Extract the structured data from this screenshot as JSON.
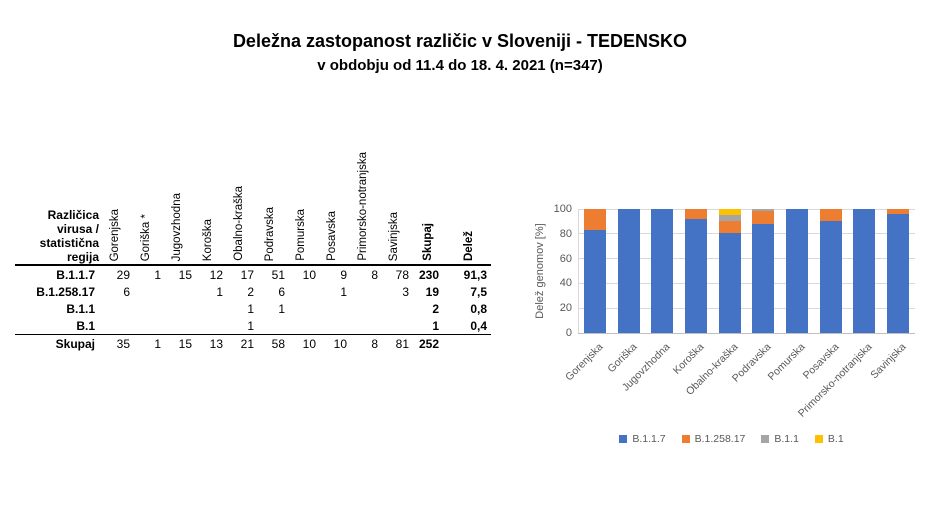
{
  "title": "Deležna zastopanost različic v Sloveniji - TEDENSKO",
  "subtitle": "v obdobju od 11.4 do 18. 4. 2021 (n=347)",
  "table": {
    "corner_header": "Različica\nvirusa /\nstatistična\nregija",
    "region_headers": [
      "Gorenjska",
      "Goriška *",
      "Jugovzhodna",
      "Koroška",
      "Obalno-kraška",
      "Podravska",
      "Pomurska",
      "Posavska",
      "Primorsko-notranjska",
      "Savinjska"
    ],
    "total_header": "Skupaj",
    "share_header": "Delež",
    "rows": [
      {
        "label": "B.1.1.7",
        "values": [
          "29",
          "1",
          "15",
          "12",
          "17",
          "51",
          "10",
          "9",
          "8",
          "78"
        ],
        "total": "230",
        "share": "91,3"
      },
      {
        "label": "B.1.258.17",
        "values": [
          "6",
          "",
          "",
          "1",
          "2",
          "6",
          "",
          "1",
          "",
          "3"
        ],
        "total": "19",
        "share": "7,5"
      },
      {
        "label": "B.1.1",
        "values": [
          "",
          "",
          "",
          "",
          "1",
          "1",
          "",
          "",
          "",
          ""
        ],
        "total": "2",
        "share": "0,8"
      },
      {
        "label": "B.1",
        "values": [
          "",
          "",
          "",
          "",
          "1",
          "",
          "",
          "",
          "",
          ""
        ],
        "total": "1",
        "share": "0,4"
      }
    ],
    "total_row": {
      "label": "Skupaj",
      "values": [
        "35",
        "1",
        "15",
        "13",
        "21",
        "58",
        "10",
        "10",
        "8",
        "81"
      ],
      "total": "252",
      "share": ""
    }
  },
  "chart_data": {
    "type": "bar",
    "stacked": true,
    "stacked_100_percent": true,
    "categories": [
      "Gorenjska",
      "Goriška",
      "Jugovzhodna",
      "Koroška",
      "Obalno-kraška",
      "Podravska",
      "Pomurska",
      "Posavska",
      "Primorsko-notranjska",
      "Savinjska"
    ],
    "series": [
      {
        "name": "B.1.1.7",
        "color": "#4472C4",
        "values": [
          82.9,
          100,
          100,
          92.3,
          81.0,
          87.9,
          100,
          90,
          100,
          96.3
        ]
      },
      {
        "name": "B.1.258.17",
        "color": "#ED7D31",
        "values": [
          17.1,
          0,
          0,
          7.7,
          9.5,
          10.3,
          0,
          10,
          0,
          3.7
        ]
      },
      {
        "name": "B.1.1",
        "color": "#A5A5A5",
        "values": [
          0,
          0,
          0,
          0,
          4.8,
          1.7,
          0,
          0,
          0,
          0
        ]
      },
      {
        "name": "B.1",
        "color": "#FFC000",
        "values": [
          0,
          0,
          0,
          0,
          4.8,
          0,
          0,
          0,
          0,
          0
        ]
      }
    ],
    "ylabel": "Delež genomov [%]",
    "yticks": [
      0,
      20,
      40,
      60,
      80,
      100
    ],
    "ylim": [
      0,
      100
    ],
    "grid": true,
    "legend_position": "bottom"
  },
  "colors": {
    "bar_blue": "#4472C4",
    "bar_orange": "#ED7D31",
    "bar_gray": "#A5A5A5",
    "bar_yellow": "#FFC000",
    "gridline": "#d9d9d9",
    "axis_text": "#595959"
  }
}
